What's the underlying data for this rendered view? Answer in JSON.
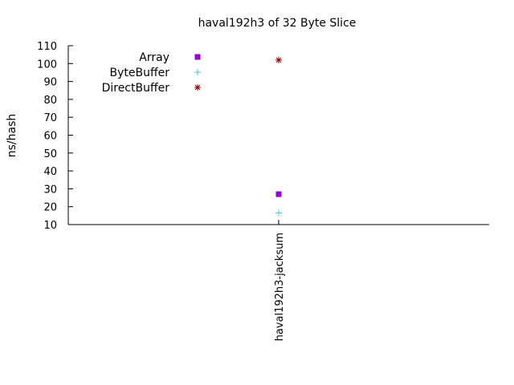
{
  "chart_data": {
    "type": "scatter",
    "title": "haval192h3 of 32 Byte Slice",
    "xlabel": "",
    "ylabel": "ns/hash",
    "ylim": [
      10,
      110
    ],
    "yticks": [
      10,
      20,
      30,
      40,
      50,
      60,
      70,
      80,
      90,
      100,
      110
    ],
    "grid": false,
    "legend_placement": "top-left",
    "categories": [
      "haval192h3-jacksum"
    ],
    "series": [
      {
        "name": "Array",
        "values": [
          27
        ],
        "color": "#9400d3",
        "marker": "square"
      },
      {
        "name": "ByteBuffer",
        "values": [
          16.5
        ],
        "color": "#56b4e9",
        "marker": "plus"
      },
      {
        "name": "DirectBuffer",
        "values": [
          102
        ],
        "color": "#8b0000",
        "marker": "asterisk"
      }
    ]
  }
}
